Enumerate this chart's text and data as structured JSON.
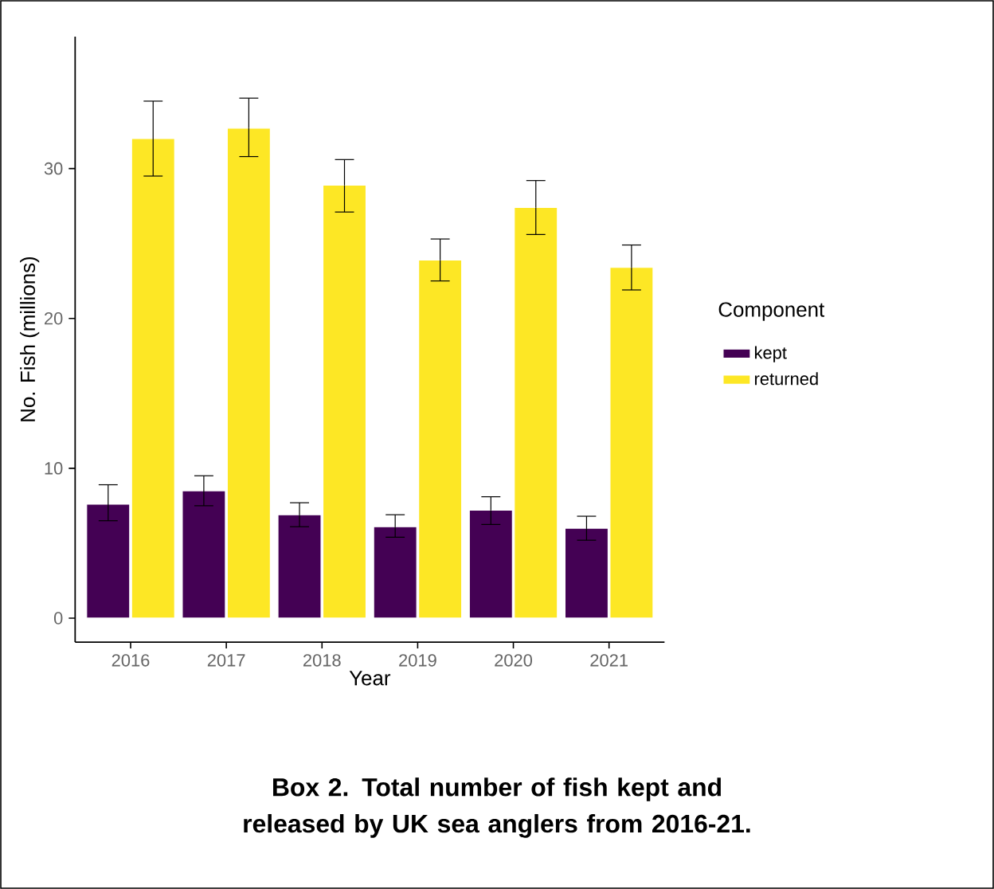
{
  "chart_data": {
    "type": "bar",
    "title": "Box 2. Total number of fish kept and released by UK sea anglers from 2016-21.",
    "xlabel": "Year",
    "ylabel": "No. Fish (millions)",
    "legend_title": "Component",
    "legend": "right",
    "categories": [
      "2016",
      "2017",
      "2018",
      "2019",
      "2020",
      "2021"
    ],
    "ylim": [
      -1.6,
      38.8
    ],
    "yticks": [
      0,
      10,
      20,
      30
    ],
    "series": [
      {
        "name": "kept",
        "color": "#440154",
        "values": [
          7.6,
          8.5,
          6.9,
          6.1,
          7.2,
          6.0
        ],
        "errors": [
          [
            6.5,
            8.9
          ],
          [
            7.5,
            9.5
          ],
          [
            6.1,
            7.7
          ],
          [
            5.4,
            6.9
          ],
          [
            6.25,
            8.1
          ],
          [
            5.2,
            6.8
          ]
        ]
      },
      {
        "name": "returned",
        "color": "#fde725",
        "values": [
          32.0,
          32.7,
          28.9,
          23.9,
          27.4,
          23.4
        ],
        "errors": [
          [
            29.5,
            34.5
          ],
          [
            30.8,
            34.7
          ],
          [
            27.1,
            30.6
          ],
          [
            22.5,
            25.3
          ],
          [
            25.6,
            29.2
          ],
          [
            21.9,
            24.9
          ]
        ]
      }
    ]
  }
}
